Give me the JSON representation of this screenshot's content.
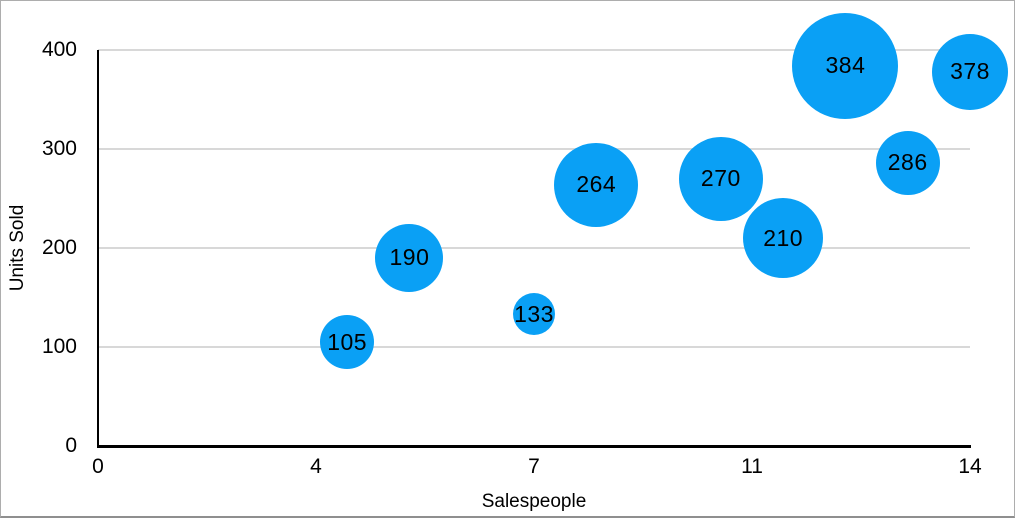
{
  "chart_data": {
    "type": "scatter",
    "subtype": "bubble",
    "title": "",
    "xlabel": "Salespeople",
    "ylabel": "Units Sold",
    "xlim": [
      0,
      14
    ],
    "ylim": [
      0,
      400
    ],
    "grid": "horizontal",
    "legend": "none",
    "x_ticks": [
      {
        "value": 0,
        "label": "0"
      },
      {
        "value": 3.5,
        "label": "4"
      },
      {
        "value": 7,
        "label": "7"
      },
      {
        "value": 10.5,
        "label": "11"
      },
      {
        "value": 14,
        "label": "14"
      }
    ],
    "y_ticks": [
      {
        "value": 0,
        "label": "0"
      },
      {
        "value": 100,
        "label": "100"
      },
      {
        "value": 200,
        "label": "200"
      },
      {
        "value": 300,
        "label": "300"
      },
      {
        "value": 400,
        "label": "400"
      }
    ],
    "series": [
      {
        "name": "Units Sold",
        "points": [
          {
            "x": 4,
            "y": 105,
            "label": "105",
            "radius_px": 27
          },
          {
            "x": 5,
            "y": 190,
            "label": "190",
            "radius_px": 34
          },
          {
            "x": 7,
            "y": 133,
            "label": "133",
            "radius_px": 21
          },
          {
            "x": 8,
            "y": 264,
            "label": "264",
            "radius_px": 42
          },
          {
            "x": 10,
            "y": 270,
            "label": "270",
            "radius_px": 42
          },
          {
            "x": 11,
            "y": 210,
            "label": "210",
            "radius_px": 40
          },
          {
            "x": 12,
            "y": 384,
            "label": "384",
            "radius_px": 53
          },
          {
            "x": 13,
            "y": 286,
            "label": "286",
            "radius_px": 32
          },
          {
            "x": 14,
            "y": 378,
            "label": "378",
            "radius_px": 38
          }
        ]
      }
    ]
  },
  "colors": {
    "bubble_fill": "#0AA0F5",
    "bubble_label": "#000000",
    "gridline": "#D8D8D8",
    "axis_line": "#000000",
    "tick_label": "#000000",
    "axis_title": "#000000",
    "background": "#FFFFFF",
    "frame_border": "#ADADAD"
  }
}
